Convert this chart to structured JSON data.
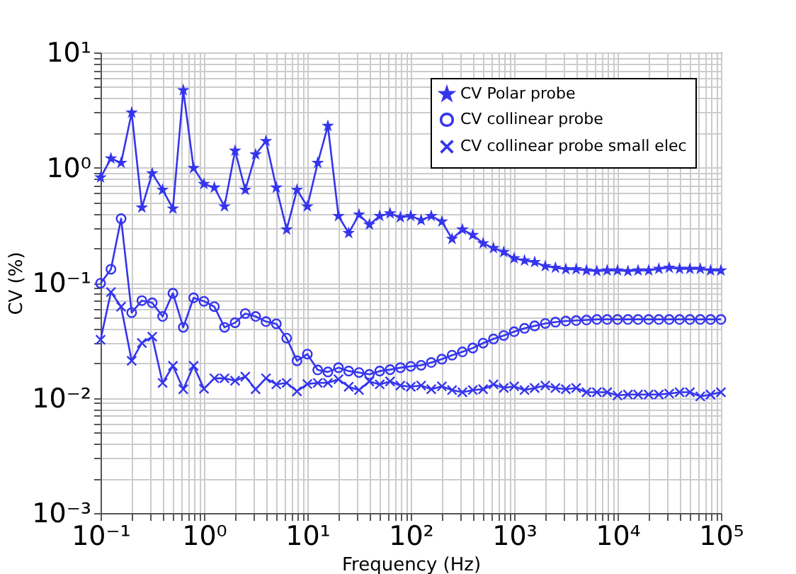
{
  "chart_data": {
    "type": "line",
    "xlabel": "Frequency (Hz)",
    "ylabel": "CV (%)",
    "log": "xy",
    "grid": true,
    "legend": "top right",
    "xlim": [
      0.1,
      100000
    ],
    "ylim": [
      0.001,
      10
    ],
    "xticks": [
      {
        "value": 0.1,
        "label": "10⁻¹"
      },
      {
        "value": 0.2,
        "label": null
      },
      {
        "value": 0.3,
        "label": null
      },
      {
        "value": 0.4,
        "label": null
      },
      {
        "value": 0.5,
        "label": null
      },
      {
        "value": 0.6,
        "label": null
      },
      {
        "value": 0.7,
        "label": null
      },
      {
        "value": 0.8,
        "label": null
      },
      {
        "value": 0.9,
        "label": null
      },
      {
        "value": 1,
        "label": "10⁰"
      },
      {
        "value": 2,
        "label": null
      },
      {
        "value": 3,
        "label": null
      },
      {
        "value": 4,
        "label": null
      },
      {
        "value": 5,
        "label": null
      },
      {
        "value": 6,
        "label": null
      },
      {
        "value": 7,
        "label": null
      },
      {
        "value": 8,
        "label": null
      },
      {
        "value": 9,
        "label": null
      },
      {
        "value": 10,
        "label": "10¹"
      },
      {
        "value": 20,
        "label": null
      },
      {
        "value": 30,
        "label": null
      },
      {
        "value": 40,
        "label": null
      },
      {
        "value": 50,
        "label": null
      },
      {
        "value": 60,
        "label": null
      },
      {
        "value": 70,
        "label": null
      },
      {
        "value": 80,
        "label": null
      },
      {
        "value": 90,
        "label": null
      },
      {
        "value": 100,
        "label": "10²"
      },
      {
        "value": 200,
        "label": null
      },
      {
        "value": 300,
        "label": null
      },
      {
        "value": 400,
        "label": null
      },
      {
        "value": 500,
        "label": null
      },
      {
        "value": 600,
        "label": null
      },
      {
        "value": 700,
        "label": null
      },
      {
        "value": 800,
        "label": null
      },
      {
        "value": 900,
        "label": null
      },
      {
        "value": 1000,
        "label": "10³"
      },
      {
        "value": 2000,
        "label": null
      },
      {
        "value": 3000,
        "label": null
      },
      {
        "value": 4000,
        "label": null
      },
      {
        "value": 5000,
        "label": null
      },
      {
        "value": 6000,
        "label": null
      },
      {
        "value": 7000,
        "label": null
      },
      {
        "value": 8000,
        "label": null
      },
      {
        "value": 9000,
        "label": null
      },
      {
        "value": 10000,
        "label": "10⁴"
      },
      {
        "value": 20000,
        "label": null
      },
      {
        "value": 30000,
        "label": null
      },
      {
        "value": 40000,
        "label": null
      },
      {
        "value": 50000,
        "label": null
      },
      {
        "value": 60000,
        "label": null
      },
      {
        "value": 70000,
        "label": null
      },
      {
        "value": 80000,
        "label": null
      },
      {
        "value": 90000,
        "label": null
      },
      {
        "value": 100000,
        "label": "10⁵"
      }
    ],
    "yticks": [
      {
        "value": 0.001,
        "label": "10⁻³"
      },
      {
        "value": 0.002,
        "label": null
      },
      {
        "value": 0.003,
        "label": null
      },
      {
        "value": 0.004,
        "label": null
      },
      {
        "value": 0.005,
        "label": null
      },
      {
        "value": 0.006,
        "label": null
      },
      {
        "value": 0.007,
        "label": null
      },
      {
        "value": 0.008,
        "label": null
      },
      {
        "value": 0.009,
        "label": null
      },
      {
        "value": 0.01,
        "label": "10⁻²"
      },
      {
        "value": 0.02,
        "label": null
      },
      {
        "value": 0.03,
        "label": null
      },
      {
        "value": 0.04,
        "label": null
      },
      {
        "value": 0.05,
        "label": null
      },
      {
        "value": 0.06,
        "label": null
      },
      {
        "value": 0.07,
        "label": null
      },
      {
        "value": 0.08,
        "label": null
      },
      {
        "value": 0.09,
        "label": null
      },
      {
        "value": 0.1,
        "label": "10⁻¹"
      },
      {
        "value": 0.2,
        "label": null
      },
      {
        "value": 0.3,
        "label": null
      },
      {
        "value": 0.4,
        "label": null
      },
      {
        "value": 0.5,
        "label": null
      },
      {
        "value": 0.6,
        "label": null
      },
      {
        "value": 0.7,
        "label": null
      },
      {
        "value": 0.8,
        "label": null
      },
      {
        "value": 0.9,
        "label": null
      },
      {
        "value": 1,
        "label": "10⁰"
      },
      {
        "value": 2,
        "label": null
      },
      {
        "value": 3,
        "label": null
      },
      {
        "value": 4,
        "label": null
      },
      {
        "value": 5,
        "label": null
      },
      {
        "value": 6,
        "label": null
      },
      {
        "value": 7,
        "label": null
      },
      {
        "value": 8,
        "label": null
      },
      {
        "value": 9,
        "label": null
      },
      {
        "value": 10,
        "label": "10¹"
      }
    ],
    "x": [
      0.1,
      0.126,
      0.158,
      0.2,
      0.251,
      0.316,
      0.398,
      0.501,
      0.631,
      0.794,
      1,
      1.26,
      1.58,
      2,
      2.51,
      3.16,
      3.98,
      5.01,
      6.31,
      7.94,
      10,
      12.6,
      15.8,
      20,
      25.1,
      31.6,
      39.8,
      50.1,
      63.1,
      79.4,
      100,
      126,
      158,
      200,
      251,
      316,
      398,
      501,
      631,
      794,
      1000,
      1260,
      1580,
      2000,
      2510,
      3160,
      3980,
      5010,
      6310,
      7940,
      10000,
      12600,
      15800,
      20000,
      25100,
      31600,
      39800,
      50100,
      63100,
      79400,
      100000
    ],
    "series": [
      {
        "name": "CV Polar probe",
        "color": "#3535ee",
        "marker": "star",
        "line_style": "solid",
        "values": [
          0.82,
          1.2,
          1.1,
          3.0,
          0.45,
          0.89,
          0.64,
          0.44,
          4.7,
          0.99,
          0.72,
          0.67,
          0.46,
          1.4,
          0.64,
          1.3,
          1.7,
          0.67,
          0.29,
          0.64,
          0.46,
          1.1,
          2.3,
          0.38,
          0.27,
          0.39,
          0.32,
          0.38,
          0.4,
          0.37,
          0.38,
          0.35,
          0.38,
          0.34,
          0.24,
          0.29,
          0.26,
          0.22,
          0.2,
          0.185,
          0.163,
          0.156,
          0.151,
          0.139,
          0.135,
          0.131,
          0.131,
          0.128,
          0.126,
          0.128,
          0.128,
          0.126,
          0.128,
          0.128,
          0.132,
          0.135,
          0.132,
          0.132,
          0.132,
          0.128,
          0.128
        ]
      },
      {
        "name": "CV collinear probe",
        "color": "#3535ee",
        "marker": "circle",
        "line_style": "solid",
        "values": [
          0.099,
          0.131,
          0.36,
          0.055,
          0.07,
          0.067,
          0.051,
          0.081,
          0.041,
          0.074,
          0.069,
          0.062,
          0.041,
          0.045,
          0.054,
          0.051,
          0.046,
          0.044,
          0.033,
          0.021,
          0.024,
          0.0175,
          0.0168,
          0.0183,
          0.0171,
          0.0166,
          0.016,
          0.0171,
          0.0176,
          0.0183,
          0.0188,
          0.0192,
          0.0203,
          0.0217,
          0.0235,
          0.0251,
          0.0271,
          0.0299,
          0.0325,
          0.0348,
          0.0376,
          0.0402,
          0.0422,
          0.0443,
          0.0455,
          0.0465,
          0.047,
          0.0475,
          0.048,
          0.048,
          0.048,
          0.048,
          0.048,
          0.048,
          0.048,
          0.048,
          0.048,
          0.048,
          0.048,
          0.048,
          0.048
        ]
      },
      {
        "name": "CV collinear probe small elec",
        "color": "#3535ee",
        "marker": "cross",
        "line_style": "solid",
        "values": [
          0.032,
          0.083,
          0.062,
          0.021,
          0.03,
          0.034,
          0.0135,
          0.019,
          0.0119,
          0.019,
          0.012,
          0.0148,
          0.0148,
          0.0141,
          0.0153,
          0.0119,
          0.0148,
          0.0131,
          0.0135,
          0.0114,
          0.0132,
          0.0135,
          0.0135,
          0.0145,
          0.0125,
          0.0117,
          0.0139,
          0.0131,
          0.0139,
          0.0128,
          0.0125,
          0.0128,
          0.0119,
          0.0126,
          0.0117,
          0.0112,
          0.0117,
          0.0119,
          0.0131,
          0.0122,
          0.0126,
          0.0117,
          0.0122,
          0.0128,
          0.0122,
          0.0119,
          0.0122,
          0.0112,
          0.0112,
          0.0112,
          0.0105,
          0.0107,
          0.0107,
          0.0107,
          0.0107,
          0.0109,
          0.0112,
          0.0112,
          0.0103,
          0.0107,
          0.0112
        ]
      }
    ]
  }
}
